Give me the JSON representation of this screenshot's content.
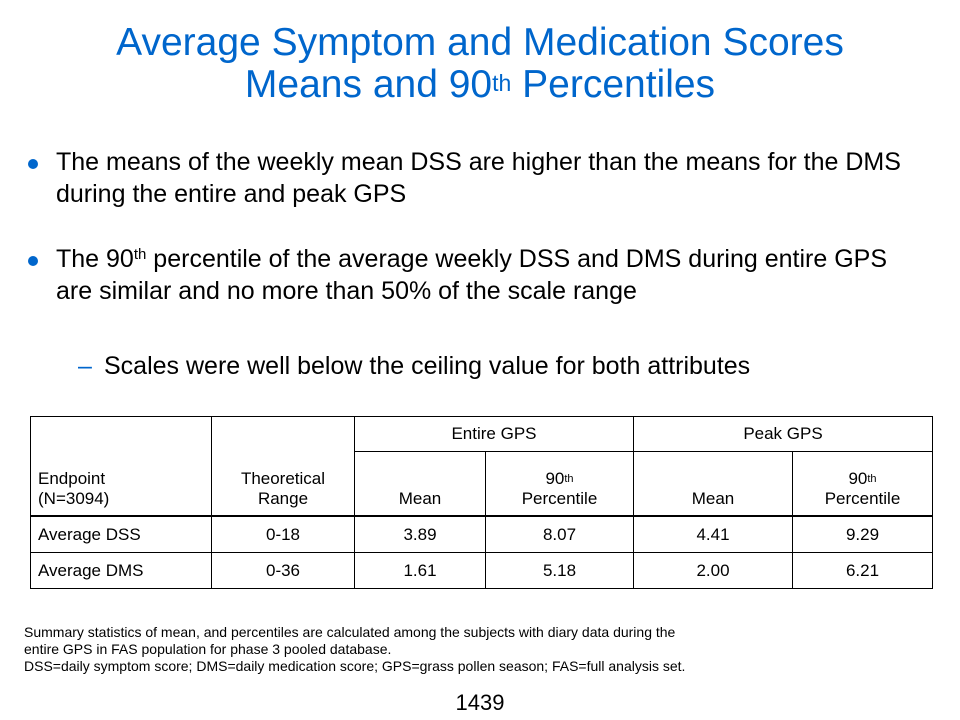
{
  "title": {
    "line1": "Average Symptom and Medication Scores",
    "line2_prefix": "Means and 90",
    "line2_sup": "th",
    "line2_suffix": " Percentiles"
  },
  "bullets": [
    {
      "text": "The means of the weekly mean DSS are higher than the means for the DMS during the entire and peak GPS"
    },
    {
      "prefix": "The 90",
      "sup": "th",
      "suffix": " percentile of the average weekly DSS and DMS during entire GPS are similar and no more than 50% of the scale range"
    }
  ],
  "sub_bullet": {
    "dash": "–",
    "text": "Scales were well below the ceiling value for both attributes"
  },
  "table": {
    "endpoint_line1": "Endpoint",
    "endpoint_line2": "(N=3094)",
    "range_line1": "Theoretical",
    "range_line2": "Range",
    "group1": "Entire GPS",
    "group2": "Peak GPS",
    "mean": "Mean",
    "pct_prefix": "90",
    "pct_sup": "th",
    "pct_label": "Percentile",
    "rows": [
      {
        "endpoint": "Average DSS",
        "range": "0-18",
        "entire_mean": "3.89",
        "entire_p90": "8.07",
        "peak_mean": "4.41",
        "peak_p90": "9.29"
      },
      {
        "endpoint": "Average DMS",
        "range": "0-36",
        "entire_mean": "1.61",
        "entire_p90": "5.18",
        "peak_mean": "2.00",
        "peak_p90": "6.21"
      }
    ]
  },
  "footnote": {
    "line1": "Summary statistics of mean, and percentiles are calculated among the subjects with diary data during the",
    "line2": "entire GPS in FAS population for phase 3 pooled database.",
    "line3": "DSS=daily symptom score; DMS=daily medication score; GPS=grass pollen season; FAS=full analysis set."
  },
  "page_number": "1439",
  "colors": {
    "accent": "#0066CC",
    "text": "#000000",
    "background": "#FFFFFF"
  }
}
